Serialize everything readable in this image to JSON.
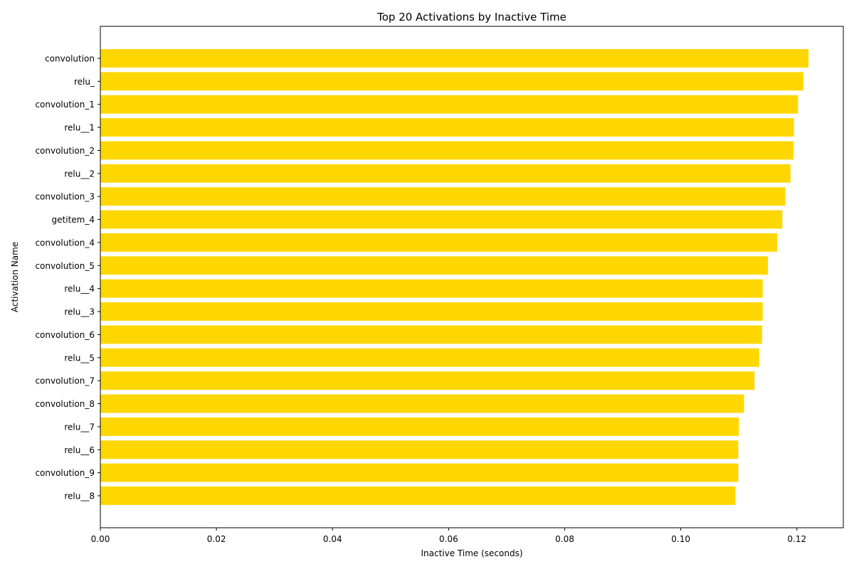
{
  "chart_data": {
    "type": "bar",
    "orientation": "horizontal",
    "title": "Top 20 Activations by Inactive Time",
    "xlabel": "Inactive Time (seconds)",
    "ylabel": "Activation Name",
    "xlim": [
      0,
      0.128
    ],
    "xticks": [
      "0.00",
      "0.02",
      "0.04",
      "0.06",
      "0.08",
      "0.10",
      "0.12"
    ],
    "bar_color": "#FFD700",
    "grid": false,
    "categories": [
      "convolution",
      "relu_",
      "convolution_1",
      "relu__1",
      "convolution_2",
      "relu__2",
      "convolution_3",
      "getitem_4",
      "convolution_4",
      "convolution_5",
      "relu__4",
      "relu__3",
      "convolution_6",
      "relu__5",
      "convolution_7",
      "convolution_8",
      "relu__7",
      "relu__6",
      "convolution_9",
      "relu__8"
    ],
    "values": [
      0.122,
      0.1211,
      0.1202,
      0.1195,
      0.1194,
      0.1189,
      0.118,
      0.1175,
      0.1166,
      0.115,
      0.1141,
      0.1141,
      0.114,
      0.1135,
      0.1127,
      0.1109,
      0.11,
      0.1099,
      0.1099,
      0.1094
    ]
  }
}
